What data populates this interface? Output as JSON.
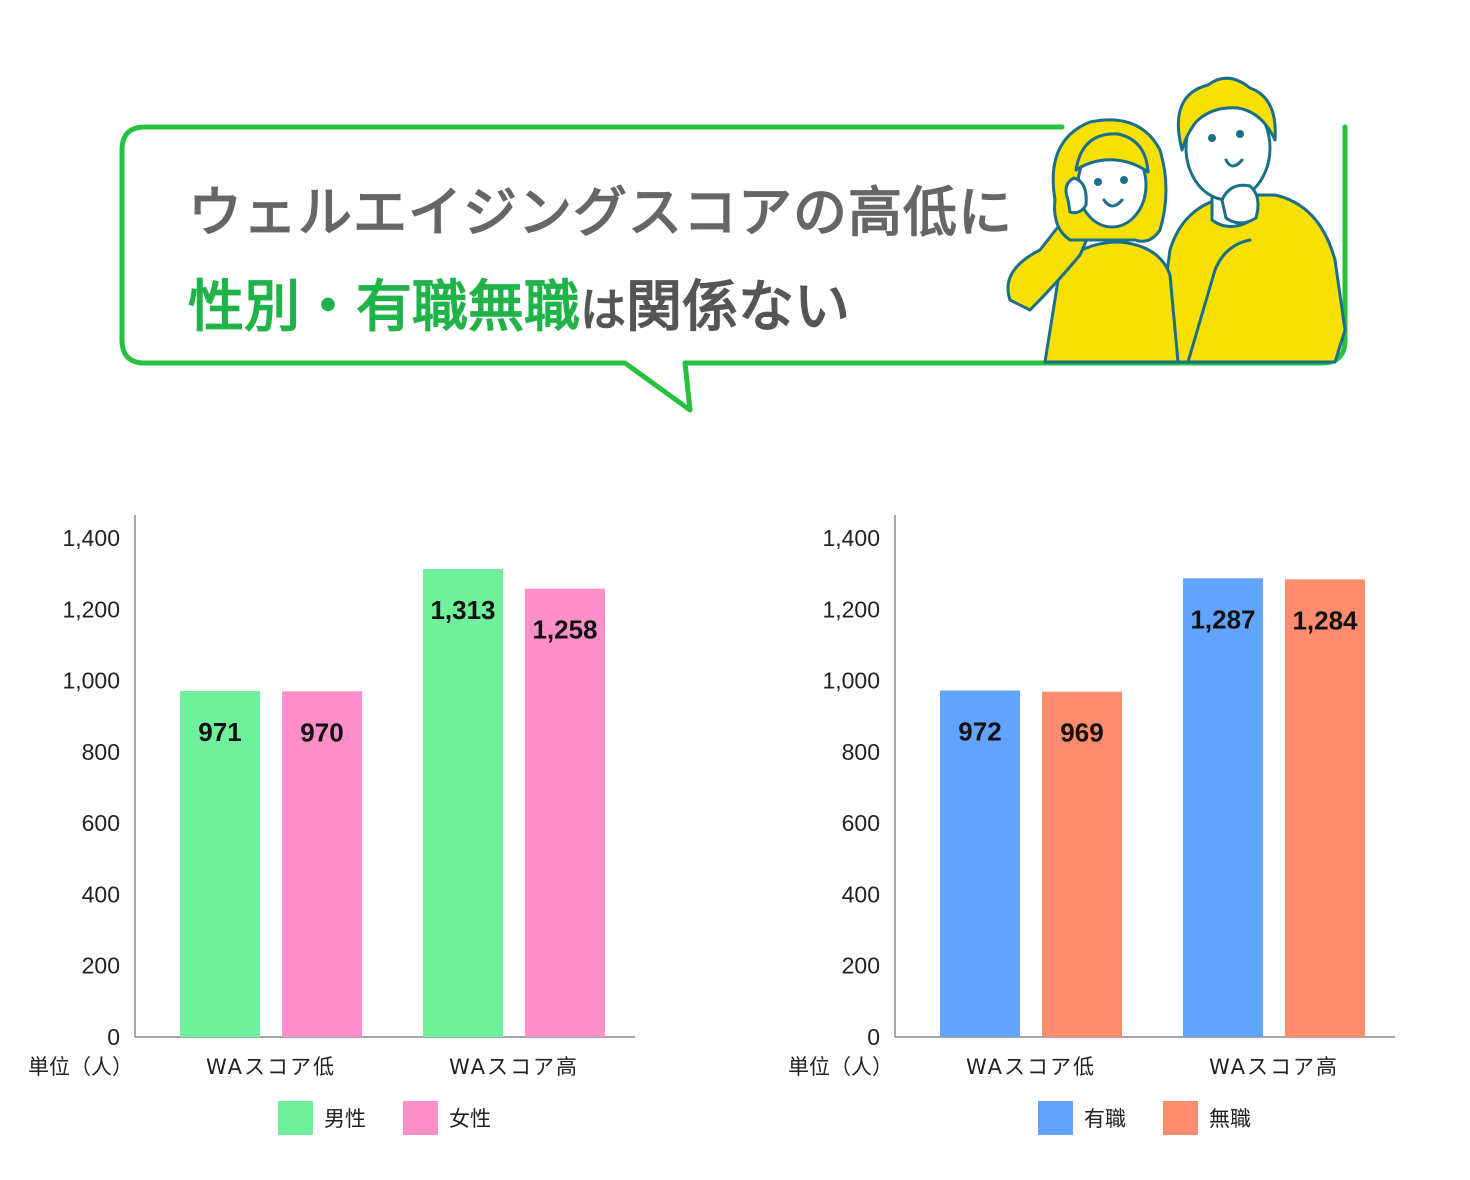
{
  "headline": {
    "line1": "ウェルエイジングスコアの高低に",
    "line2_accent": "性別・有職無職",
    "line2_small": "は",
    "line2_rest": "関係ない"
  },
  "colors": {
    "accent": "#1fb34a",
    "bubble_border": "#26c13d",
    "illustration_yellow": "#f8e000",
    "illustration_line": "#1a6f8a"
  },
  "illustration": {
    "icon": "couple-surprised-illustration"
  },
  "chart_data": [
    {
      "type": "bar",
      "categories": [
        "WAスコア低",
        "WAスコア高"
      ],
      "series": [
        {
          "name": "男性",
          "values": [
            971,
            1313
          ],
          "color": "#6ff09b"
        },
        {
          "name": "女性",
          "values": [
            970,
            1258
          ],
          "color": "#ff8fc8"
        }
      ],
      "data_labels": [
        [
          "971",
          "1,313"
        ],
        [
          "970",
          "1,258"
        ]
      ],
      "ylim": [
        0,
        1400
      ],
      "yticks": [
        0,
        200,
        400,
        600,
        800,
        1000,
        1200,
        1400
      ],
      "ytick_labels": [
        "0",
        "200",
        "400",
        "600",
        "800",
        "1,000",
        "1,200",
        "1,400"
      ],
      "unit_label": "単位（人）",
      "xlabel": "",
      "ylabel": "",
      "grid": false,
      "legend_position": "bottom-center"
    },
    {
      "type": "bar",
      "categories": [
        "WAスコア低",
        "WAスコア高"
      ],
      "series": [
        {
          "name": "有職",
          "values": [
            972,
            1287
          ],
          "color": "#62a3ff"
        },
        {
          "name": "無職",
          "values": [
            969,
            1284
          ],
          "color": "#ff8c6e"
        }
      ],
      "data_labels": [
        [
          "972",
          "1,287"
        ],
        [
          "969",
          "1,284"
        ]
      ],
      "ylim": [
        0,
        1400
      ],
      "yticks": [
        0,
        200,
        400,
        600,
        800,
        1000,
        1200,
        1400
      ],
      "ytick_labels": [
        "0",
        "200",
        "400",
        "600",
        "800",
        "1,000",
        "1,200",
        "1,400"
      ],
      "unit_label": "単位（人）",
      "xlabel": "",
      "ylabel": "",
      "grid": false,
      "legend_position": "bottom-center"
    }
  ]
}
